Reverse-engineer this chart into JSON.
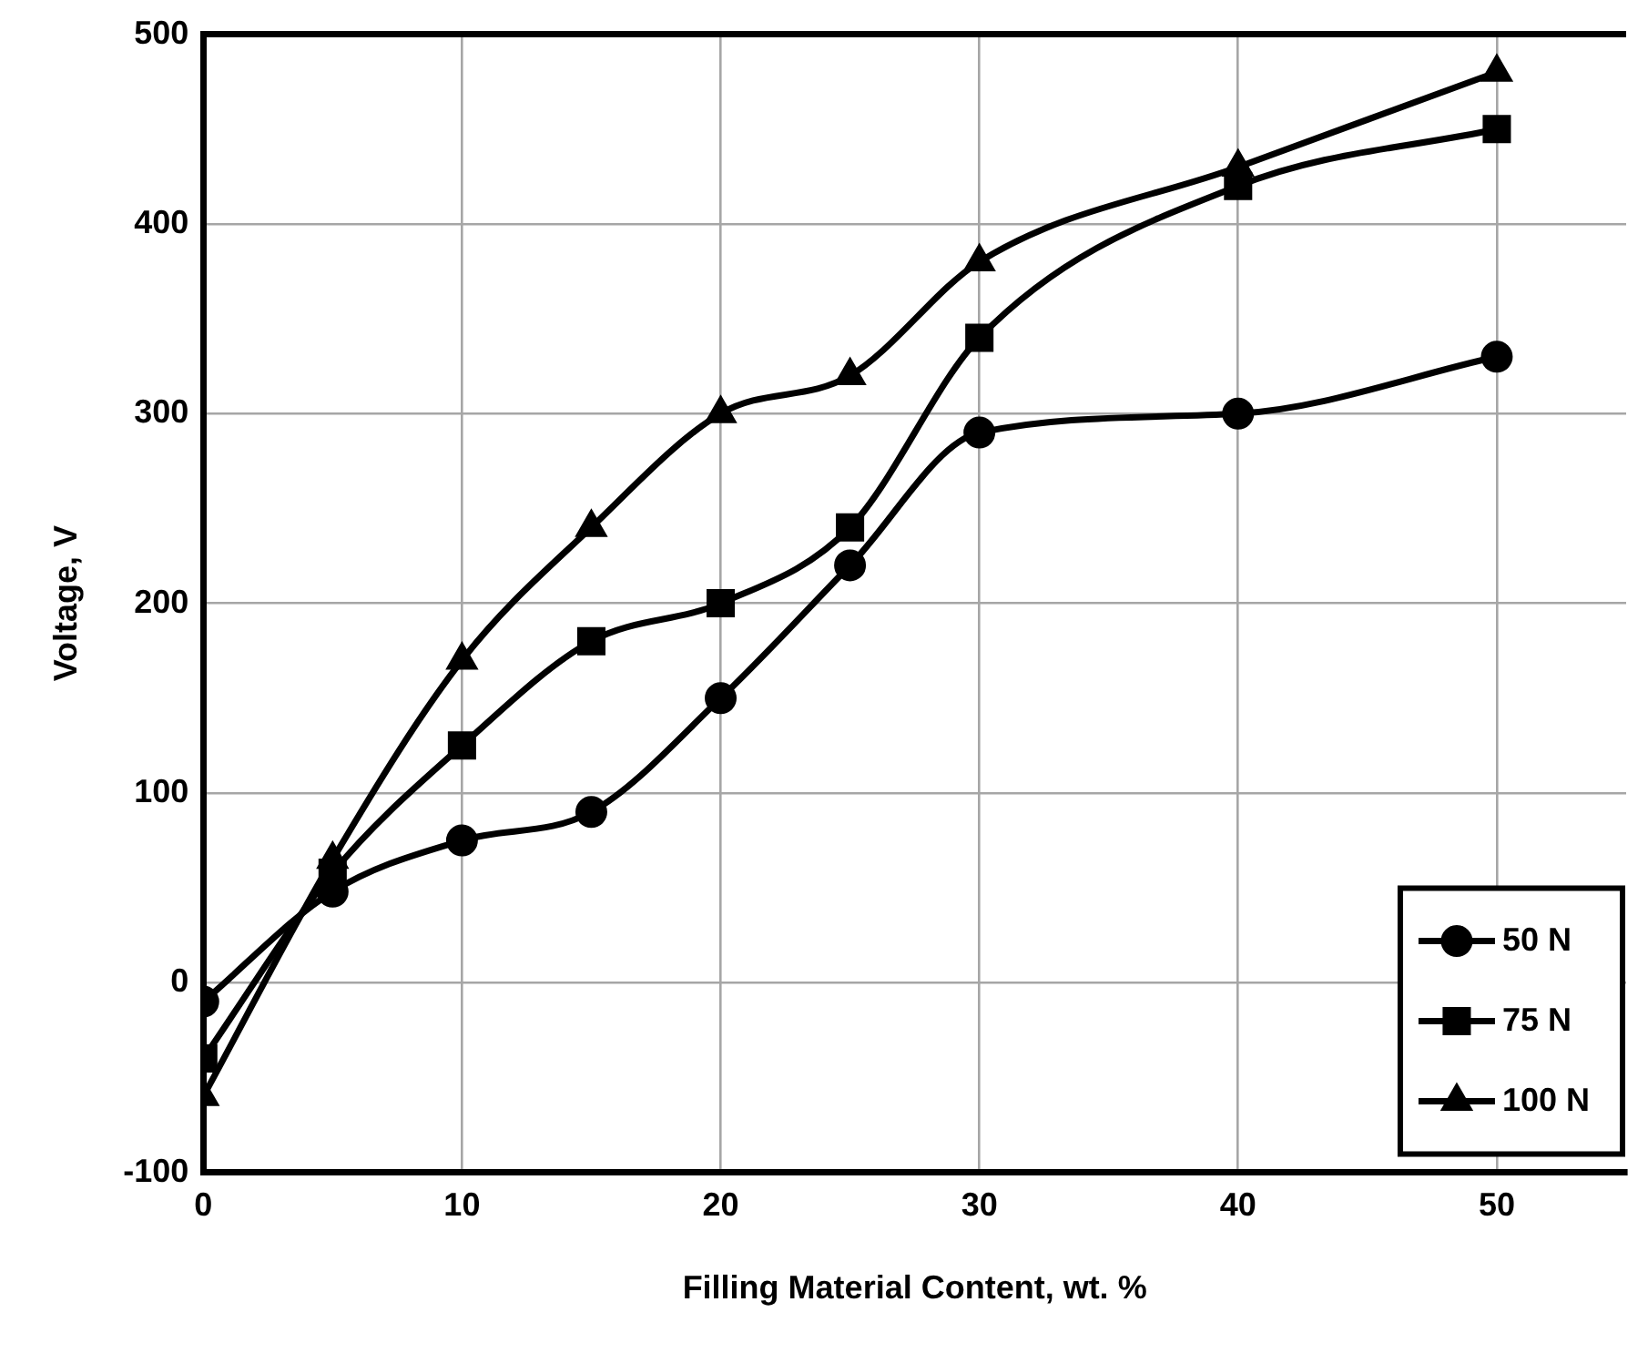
{
  "chart_data": {
    "type": "line",
    "xlabel": "Filling Material Content, wt. %",
    "ylabel": "Voltage, V",
    "x": [
      0,
      5,
      10,
      15,
      20,
      25,
      30,
      40,
      50
    ],
    "series": [
      {
        "name": "50 N",
        "color": "#000000",
        "marker": "circle",
        "values": [
          -10,
          48,
          75,
          90,
          150,
          220,
          290,
          300,
          330
        ]
      },
      {
        "name": "75 N",
        "color": "#000000",
        "marker": "square",
        "values": [
          -40,
          58,
          125,
          180,
          200,
          240,
          340,
          420,
          450
        ]
      },
      {
        "name": "100 N",
        "color": "#000000",
        "marker": "triangle",
        "values": [
          -60,
          65,
          170,
          240,
          300,
          320,
          380,
          430,
          480
        ]
      }
    ],
    "xlim": [
      0,
      55
    ],
    "xticks": [
      0,
      10,
      20,
      30,
      40,
      50
    ],
    "ylim": [
      -100,
      500
    ],
    "yticks": [
      -100,
      0,
      100,
      200,
      300,
      400,
      500
    ],
    "grid": true,
    "legend": "bottom right",
    "line_style": "solid"
  }
}
